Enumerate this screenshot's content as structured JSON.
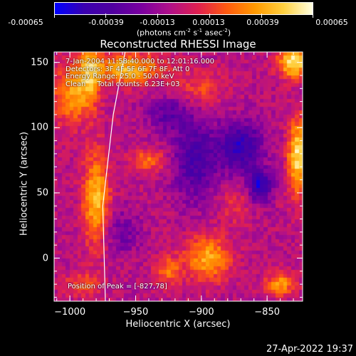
{
  "colorbar": {
    "labels": [
      "-0.00065",
      "-0.00039",
      "-0.00013",
      "0.00013",
      "0.00039",
      "0.00065"
    ],
    "unit_prefix": "(photons cm",
    "unit_exp1": "-2",
    "unit_mid": " s",
    "unit_exp2": "-1",
    "unit_mid2": " asec",
    "unit_exp3": "-2",
    "unit_suffix": ")"
  },
  "info": {
    "line1": "7-Jan-2004 11:58:40.000 to 12:01:16.000",
    "line2": "Detectors: 3F 4F 5F 6F 7F 8F, Att 0",
    "line3": "Energy Range: 25.0 - 50.0 keV",
    "line4": "Clean     Total counts: 6.23E+03",
    "peak": "Position of Peak = [-827,78]"
  },
  "footer": {
    "timestamp": "27-Apr-2022 19:37"
  },
  "chart_data": {
    "type": "heatmap",
    "title": "Reconstructed RHESSI Image",
    "xlabel": "Heliocentric X (arcsec)",
    "ylabel": "Heliocentric Y (arcsec)",
    "xlim": [
      -1012,
      -823
    ],
    "ylim": [
      -33,
      158
    ],
    "xticks": [
      -1000,
      -950,
      -900,
      -850
    ],
    "xtick_labels": [
      "−1000",
      "−950",
      "−900",
      "−850"
    ],
    "yticks": [
      0,
      50,
      100,
      150
    ],
    "ytick_labels": [
      "0",
      "50",
      "100",
      "150"
    ],
    "zlim": [
      -0.00065,
      0.00065
    ],
    "colormap": [
      "#0000ff",
      "#3a00b0",
      "#5000a0",
      "#7a00a0",
      "#b0108a",
      "#e02050",
      "#ff5a10",
      "#ff9a00",
      "#ffd040",
      "#ffffe0"
    ],
    "sources": [
      {
        "x": -1000,
        "y": 125,
        "sx": 9,
        "sy": 16,
        "amp": 0.0004
      },
      {
        "x": -955,
        "y": 145,
        "sx": 18,
        "sy": 8,
        "amp": 0.0005
      },
      {
        "x": -980,
        "y": 45,
        "sx": 7,
        "sy": 25,
        "amp": 0.0005
      },
      {
        "x": -985,
        "y": 140,
        "sx": 6,
        "sy": 18,
        "amp": 0.00045
      },
      {
        "x": -895,
        "y": 0,
        "sx": 12,
        "sy": 12,
        "amp": 0.00045
      },
      {
        "x": -830,
        "y": 150,
        "sx": 8,
        "sy": 8,
        "amp": 0.00065
      },
      {
        "x": -827,
        "y": 78,
        "sx": 5,
        "sy": 20,
        "amp": 0.0006
      },
      {
        "x": -940,
        "y": 75,
        "sx": 10,
        "sy": 6,
        "amp": 0.0003
      },
      {
        "x": -840,
        "y": -20,
        "sx": 8,
        "sy": 6,
        "amp": 0.0004
      },
      {
        "x": -925,
        "y": -10,
        "sx": 7,
        "sy": 8,
        "amp": 0.0003
      },
      {
        "x": -900,
        "y": 130,
        "sx": 14,
        "sy": 10,
        "amp": 0.0002
      },
      {
        "x": -990,
        "y": -20,
        "sx": 10,
        "sy": 6,
        "amp": 0.00025
      },
      {
        "x": -875,
        "y": 40,
        "sx": 8,
        "sy": 10,
        "amp": 0.00015
      },
      {
        "x": -905,
        "y": 75,
        "sx": 12,
        "sy": 22,
        "amp": -0.00035
      },
      {
        "x": -870,
        "y": 85,
        "sx": 12,
        "sy": 14,
        "amp": -0.00045
      },
      {
        "x": -855,
        "y": 55,
        "sx": 6,
        "sy": 8,
        "amp": -0.0005
      },
      {
        "x": -925,
        "y": 110,
        "sx": 12,
        "sy": 10,
        "amp": -0.00025
      },
      {
        "x": -960,
        "y": 20,
        "sx": 10,
        "sy": 12,
        "amp": -0.0002
      }
    ],
    "limb_arc": {
      "x": [
        -973,
        -975,
        -967,
        -958
      ],
      "y": [
        -33,
        40,
        110,
        158
      ]
    },
    "peak": {
      "x": -827,
      "y": 78
    }
  }
}
